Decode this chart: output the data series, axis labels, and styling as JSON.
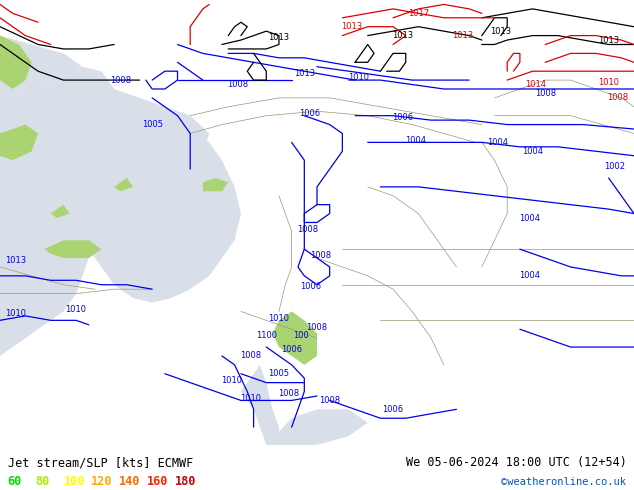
{
  "title_left": "Jet stream/SLP [kts] ECMWF",
  "title_right": "We 05-06-2024 18:00 UTC (12+54)",
  "credit": "©weatheronline.co.uk",
  "legend_values": [
    60,
    80,
    100,
    120,
    140,
    160,
    180
  ],
  "legend_colors": [
    "#00dd00",
    "#aaee00",
    "#ffff00",
    "#ffaa00",
    "#ff6600",
    "#ff2200",
    "#cc0000"
  ],
  "bg_color": "#aad472",
  "sea_color": "#d8dfe8",
  "land_green": "#aad472",
  "border_color": "#999977",
  "slp_blue": "#0000ee",
  "slp_black": "#000000",
  "slp_red": "#dd0000",
  "bottom_bg": "#c8e89a",
  "figsize": [
    6.34,
    4.9
  ],
  "dpi": 100
}
